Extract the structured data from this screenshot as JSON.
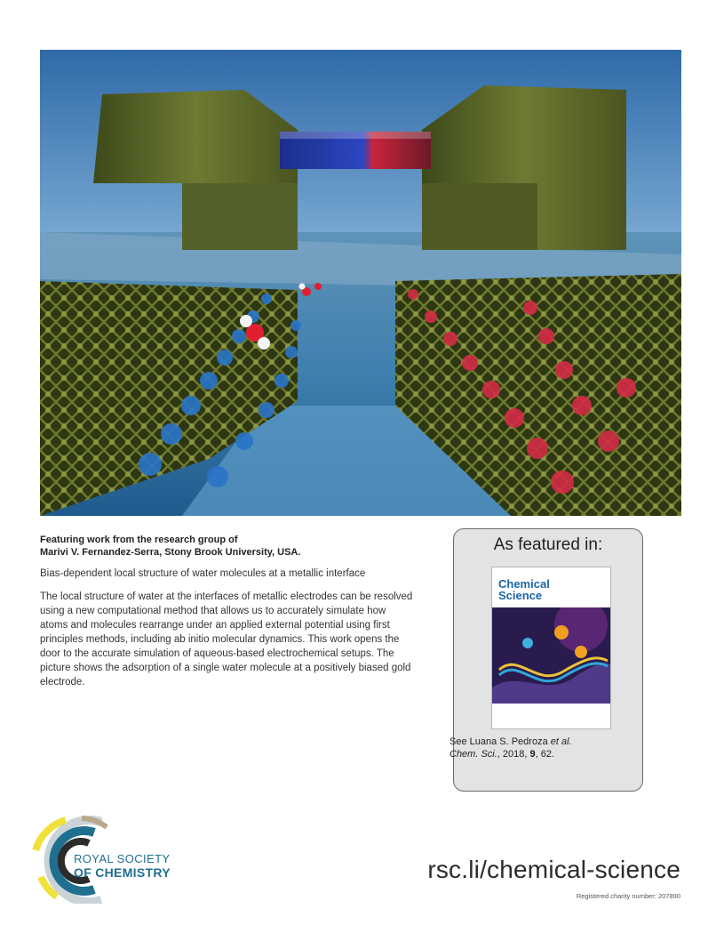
{
  "featuring": {
    "line1": "Featuring work from the research group of",
    "line2": "Marivi V. Fernandez-Serra, Stony Brook University, USA."
  },
  "paper_title": "Bias-dependent local structure of water molecules at a metallic interface",
  "abstract": "The local structure of water at the interfaces of metallic electrodes can be resolved using a new computational method that allows us to accurately simulate how atoms and molecules rearrange under an applied external potential using first principles methods, including ab initio molecular dynamics. This work opens the door to the accurate simulation of aqueous-based electrochemical setups. The picture shows the adsorption of a single water molecule at a positively biased gold electrode.",
  "featured": {
    "heading": "As featured in:",
    "cover_title": "Chemical Science",
    "ref_see": "See Luana S. Pedroza ",
    "ref_etal": "et al.",
    "ref_journal": "Chem. Sci.",
    "ref_year": ", 2018, ",
    "ref_volume": "9",
    "ref_pages": ", 62."
  },
  "logo": {
    "line1": "ROYAL SOCIETY",
    "line2": "OF CHEMISTRY"
  },
  "url": "rsc.li/chemical-science",
  "charity": "Registered charity number: 207890",
  "colors": {
    "electrode_positive": "#d7263d",
    "electrode_negative": "#1e5fb8",
    "gold_lattice": "#5f6b24",
    "rsc_teal": "#1f6f8f",
    "rsc_yellow": "#f0e23a"
  }
}
